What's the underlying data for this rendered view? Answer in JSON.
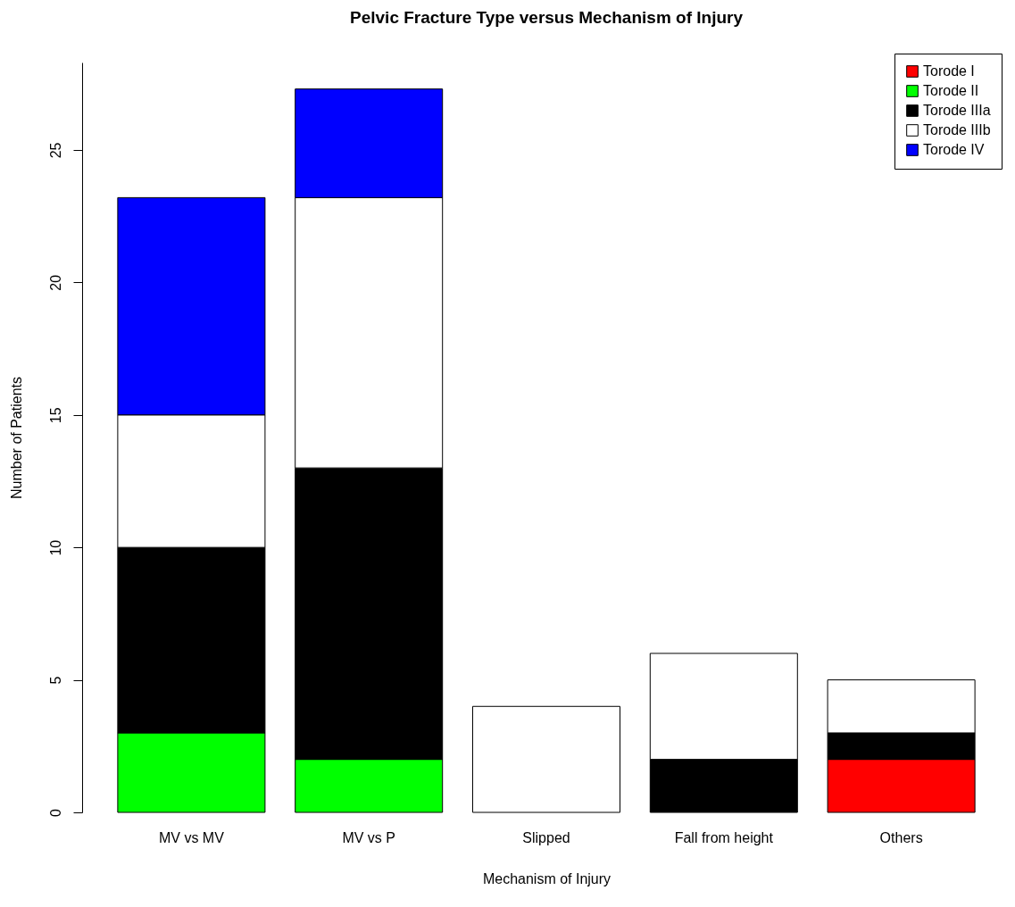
{
  "chart_data": {
    "type": "bar",
    "title": "Pelvic Fracture Type versus Mechanism of Injury",
    "xlabel": "Mechanism of Injury",
    "ylabel": "Number of Patients",
    "categories": [
      "MV vs MV",
      "MV vs P",
      "Slipped",
      "Fall from height",
      "Others"
    ],
    "stacked": true,
    "series": [
      {
        "name": "Torode I",
        "color": "#ff0000",
        "values": [
          null,
          null,
          null,
          null,
          2
        ]
      },
      {
        "name": "Torode II",
        "color": "#00ff00",
        "values": [
          3,
          2,
          null,
          null,
          null
        ]
      },
      {
        "name": "Torode IIIa",
        "color": "#000000",
        "values": [
          7,
          11,
          null,
          2,
          1
        ]
      },
      {
        "name": "Torode IIIb",
        "color": "#ffffff",
        "values": [
          5,
          10.2,
          4,
          4,
          2
        ]
      },
      {
        "name": "Torode IV",
        "color": "#0000ff",
        "values": [
          8.2,
          4.1,
          null,
          null,
          null
        ]
      }
    ],
    "ylim": [
      0,
      28.3
    ],
    "yticks": [
      0,
      5,
      10,
      15,
      20,
      25
    ],
    "grid": false,
    "legend": "top right"
  }
}
